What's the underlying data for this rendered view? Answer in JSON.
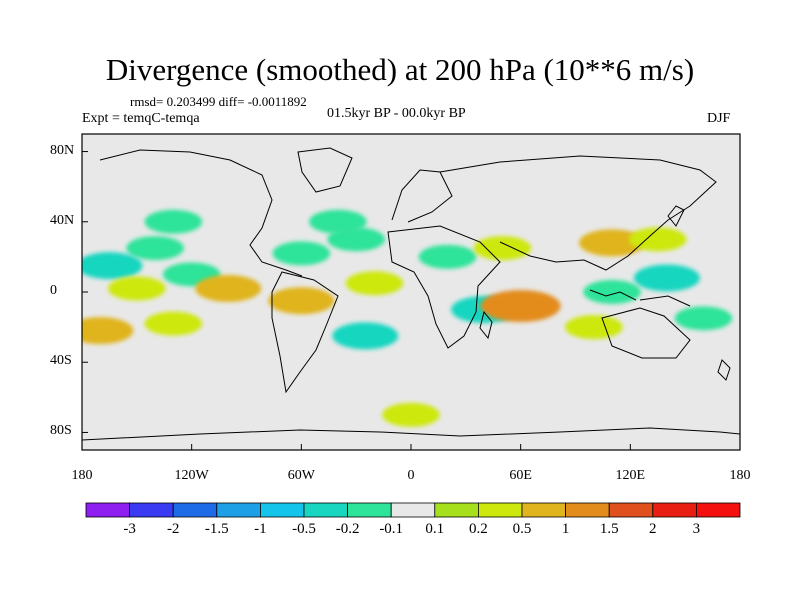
{
  "chart_data": {
    "type": "heatmap",
    "title": "Divergence (smoothed) at 200 hPa (10**6 m/s)",
    "stats": "rmsd= 0.203499 diff= -0.0011892",
    "experiment": "Expt = temqC-temqa",
    "period": "01.5kyr BP - 00.0kyr BP",
    "season": "DJF",
    "xlabel": "",
    "ylabel": "",
    "xlim": [
      -180,
      180
    ],
    "ylim": [
      -90,
      90
    ],
    "x_ticks": [
      "180",
      "120W",
      "60W",
      "0",
      "60E",
      "120E",
      "180"
    ],
    "y_ticks": [
      "80N",
      "40N",
      "0",
      "40S",
      "80S"
    ],
    "colorbar": {
      "labels": [
        "-3",
        "-2",
        "-1.5",
        "-1",
        "-0.5",
        "-0.2",
        "-0.1",
        "0.1",
        "0.2",
        "0.5",
        "1",
        "1.5",
        "2",
        "3"
      ],
      "colors": [
        "#8e1ff0",
        "#3a3af2",
        "#1e6be8",
        "#1ea0e6",
        "#14c4ea",
        "#18d6c0",
        "#2ee39a",
        "#e8e8e8",
        "#a6e01c",
        "#cde80c",
        "#e0b41e",
        "#e38c1e",
        "#e0501c",
        "#e81e12",
        "#f4100e"
      ]
    },
    "anomalies": [
      {
        "lon": -140,
        "lat": 25,
        "value": -0.2
      },
      {
        "lon": -165,
        "lat": 15,
        "value": -0.5
      },
      {
        "lon": -120,
        "lat": 10,
        "value": -0.2
      },
      {
        "lon": -150,
        "lat": 2,
        "value": 0.2
      },
      {
        "lon": -100,
        "lat": 2,
        "value": 0.5
      },
      {
        "lon": -170,
        "lat": -22,
        "value": 0.5
      },
      {
        "lon": -130,
        "lat": -18,
        "value": 0.2
      },
      {
        "lon": -60,
        "lat": -5,
        "value": 0.5
      },
      {
        "lon": -60,
        "lat": 22,
        "value": -0.2
      },
      {
        "lon": -30,
        "lat": 30,
        "value": -0.2
      },
      {
        "lon": -20,
        "lat": 5,
        "value": 0.2
      },
      {
        "lon": -25,
        "lat": -25,
        "value": -0.5
      },
      {
        "lon": 20,
        "lat": 20,
        "value": -0.2
      },
      {
        "lon": 50,
        "lat": 25,
        "value": 0.2
      },
      {
        "lon": 40,
        "lat": -10,
        "value": -0.5
      },
      {
        "lon": 60,
        "lat": -8,
        "value": 1.0
      },
      {
        "lon": 110,
        "lat": 28,
        "value": 0.5
      },
      {
        "lon": 135,
        "lat": 30,
        "value": 0.2
      },
      {
        "lon": 140,
        "lat": 8,
        "value": -0.5
      },
      {
        "lon": 110,
        "lat": 0,
        "value": -0.2
      },
      {
        "lon": 100,
        "lat": -20,
        "value": 0.2
      },
      {
        "lon": 160,
        "lat": -15,
        "value": -0.2
      },
      {
        "lon": -40,
        "lat": 40,
        "value": -0.2
      },
      {
        "lon": -130,
        "lat": 40,
        "value": -0.2
      },
      {
        "lon": 0,
        "lat": -70,
        "value": 0.2
      }
    ]
  }
}
